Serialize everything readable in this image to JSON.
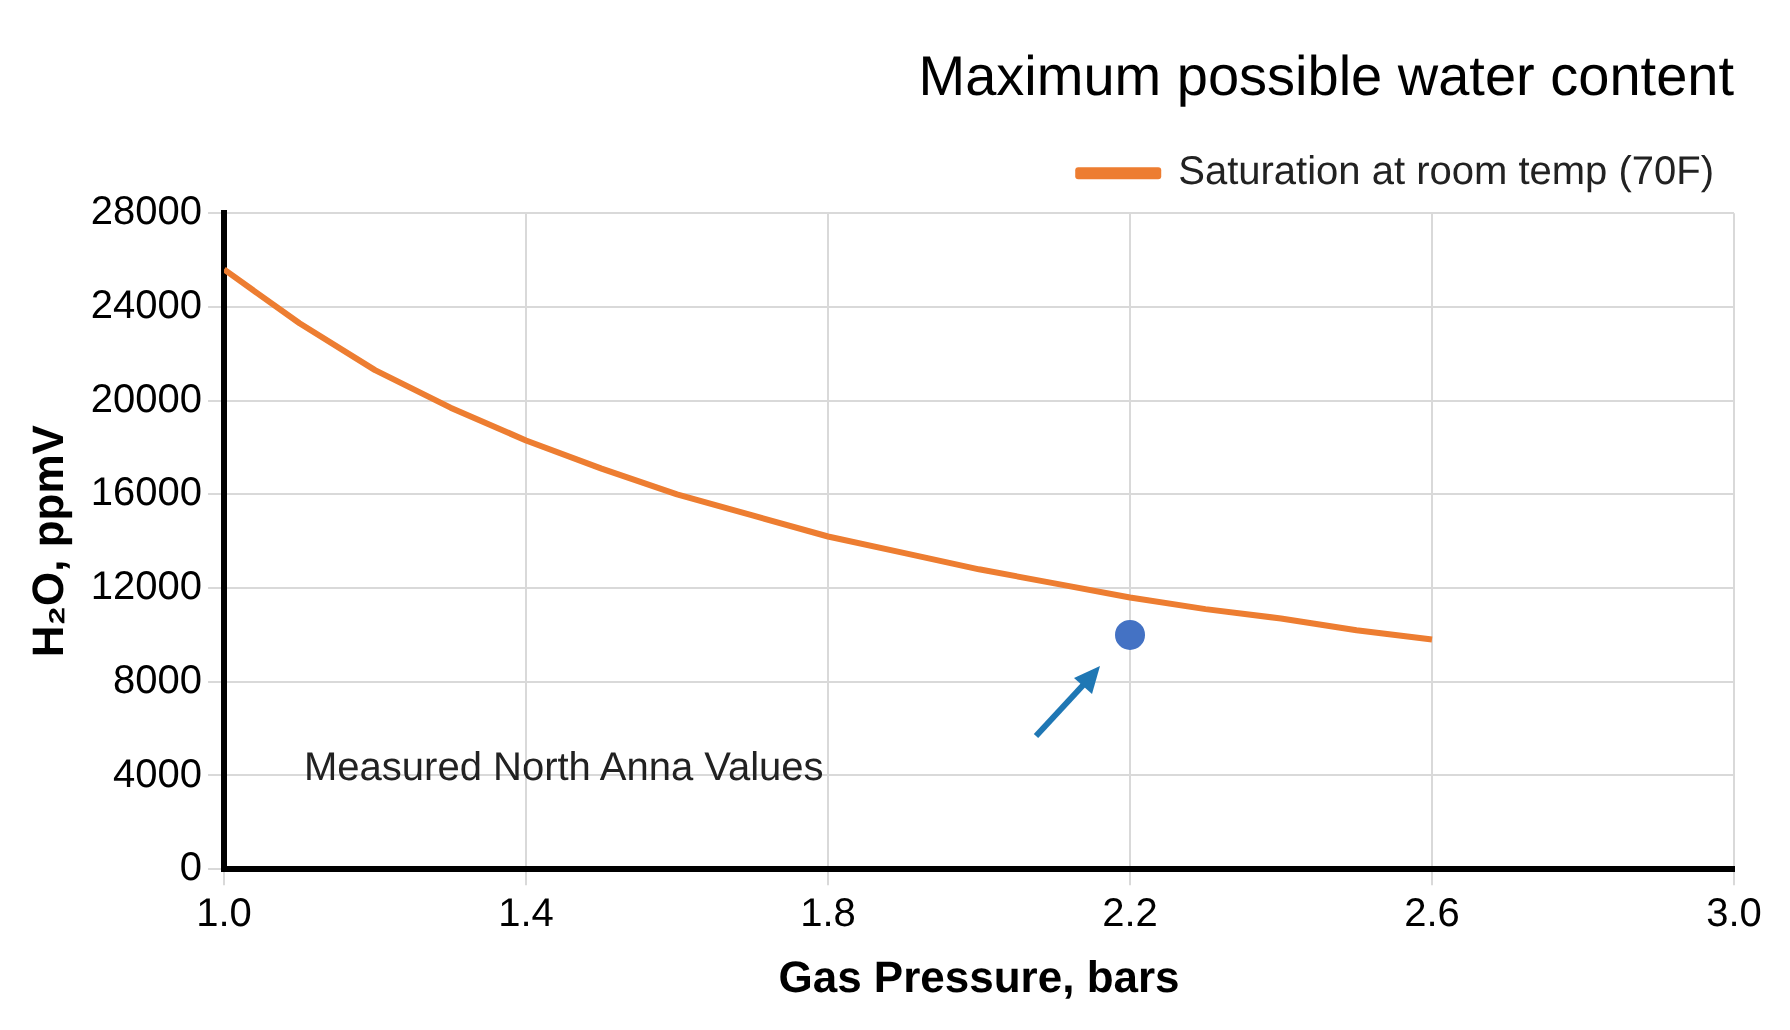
{
  "chart_data": {
    "type": "line",
    "title": "Maximum possible water content",
    "xlabel": "Gas Pressure, bars",
    "ylabel": "H₂O, ppmV",
    "xlim": [
      1.0,
      3.0
    ],
    "xticks": [
      {
        "value": 1.0,
        "label": "1.0"
      },
      {
        "value": 1.4,
        "label": "1.4"
      },
      {
        "value": 1.8,
        "label": "1.8"
      },
      {
        "value": 2.2,
        "label": "2.2"
      },
      {
        "value": 2.6,
        "label": "2.6"
      },
      {
        "value": 3.0,
        "label": "3.0"
      }
    ],
    "ylim": [
      0,
      28000
    ],
    "yticks": [
      0,
      4000,
      8000,
      12000,
      16000,
      20000,
      24000,
      28000
    ],
    "grid": true,
    "legend": "top right",
    "series": [
      {
        "name": "Saturation at room temp (70F)",
        "color": "#ed7d31",
        "marker": "none",
        "line_style": "solid",
        "x": [
          1.0,
          1.1,
          1.2,
          1.3,
          1.4,
          1.5,
          1.6,
          1.7,
          1.8,
          1.9,
          2.0,
          2.1,
          2.2,
          2.3,
          2.4,
          2.5,
          2.6
        ],
        "values": [
          25600,
          23300,
          21300,
          19700,
          18300,
          17100,
          16000,
          15100,
          14200,
          13500,
          12800,
          12200,
          11600,
          11100,
          10700,
          10200,
          9800
        ]
      },
      {
        "color": "#4472c4",
        "type": "scatter",
        "marker": "circle",
        "x": [
          2.2
        ],
        "values": [
          10000
        ]
      }
    ],
    "annotations": [
      "Measured North Anna Values"
    ]
  }
}
